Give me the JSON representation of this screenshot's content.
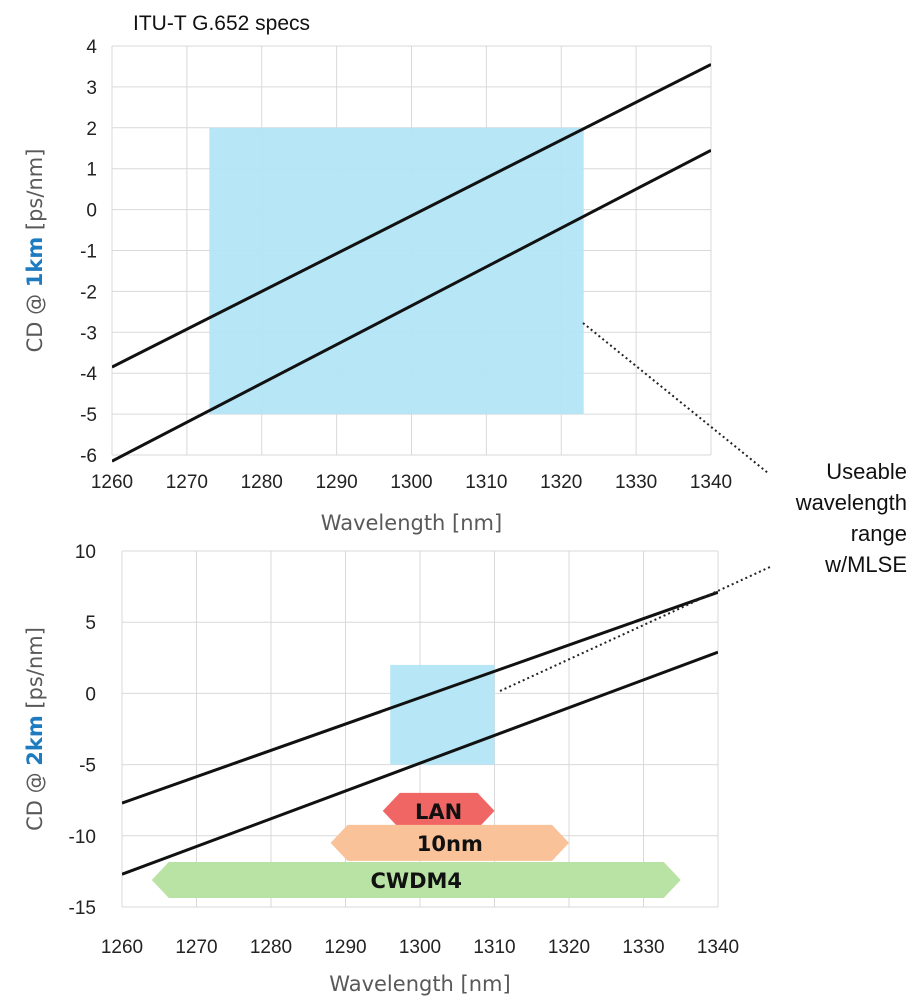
{
  "colors": {
    "grid": "#d9d9d9",
    "line": "#111111",
    "usable_fill": "#b3e6f7",
    "lan_fill": "#f06665",
    "tennm_fill": "#f9c299",
    "cwdm4_fill": "#b9e3a4",
    "km_text": "#1f7bbf"
  },
  "annotation": {
    "lines": [
      "Useable",
      "wavelength",
      "range",
      "w/MLSE"
    ]
  },
  "chart_data": [
    {
      "type": "line",
      "title": "ITU-T G.652 specs",
      "xlabel": "Wavelength [nm]",
      "ylabel_parts": [
        "CD @ ",
        "1km",
        " [ps/nm]"
      ],
      "xlim": [
        1260,
        1340
      ],
      "ylim": [
        -6,
        4
      ],
      "xticks": [
        1260,
        1270,
        1280,
        1290,
        1300,
        1310,
        1320,
        1330,
        1340
      ],
      "yticks": [
        -6,
        -5,
        -4,
        -3,
        -2,
        -1,
        0,
        1,
        2,
        3,
        4
      ],
      "grid": true,
      "series": [
        {
          "points": [
            [
              1260,
              -3.85
            ],
            [
              1340,
              3.55
            ]
          ]
        },
        {
          "points": [
            [
              1260,
              -6.15
            ],
            [
              1340,
              1.45
            ]
          ]
        }
      ],
      "regions": [
        {
          "x": [
            1273,
            1323
          ],
          "y": [
            -5,
            2
          ]
        }
      ]
    },
    {
      "type": "line",
      "title": "",
      "xlabel": "Wavelength [nm]",
      "ylabel_parts": [
        "CD @ ",
        "2km",
        " [ps/nm]"
      ],
      "xlim": [
        1260,
        1340
      ],
      "ylim": [
        -15,
        10
      ],
      "xticks": [
        1260,
        1270,
        1280,
        1290,
        1300,
        1310,
        1320,
        1330,
        1340
      ],
      "yticks": [
        -15,
        -10,
        -5,
        0,
        5,
        10
      ],
      "grid": true,
      "series": [
        {
          "points": [
            [
              1260,
              -7.7
            ],
            [
              1340,
              7.1
            ]
          ]
        },
        {
          "points": [
            [
              1260,
              -12.7
            ],
            [
              1340,
              2.9
            ]
          ]
        }
      ],
      "regions": [
        {
          "x": [
            1296,
            1310
          ],
          "y": [
            -5,
            2
          ]
        }
      ],
      "bands": [
        {
          "label": "LAN",
          "x": [
            1295,
            1310
          ],
          "y": -8.25
        },
        {
          "label": "10nm",
          "x": [
            1288,
            1320
          ],
          "y": -10.5
        },
        {
          "label": "CWDM4",
          "x": [
            1264,
            1335
          ],
          "y": -13.1
        }
      ]
    }
  ]
}
